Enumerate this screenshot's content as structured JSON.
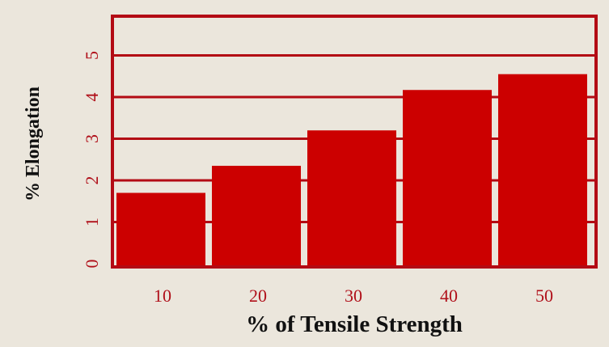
{
  "chart_data": {
    "type": "bar",
    "categories": [
      "10",
      "20",
      "30",
      "40",
      "50"
    ],
    "values": [
      1.7,
      2.35,
      3.2,
      4.17,
      4.55
    ],
    "xlabel": "% of Tensile Strength",
    "ylabel": "% Elongation",
    "ylim": [
      0,
      6
    ],
    "yticks": [
      "0",
      "1",
      "2",
      "3",
      "4",
      "5"
    ],
    "grid": true,
    "legend": "none",
    "colors": {
      "bar": "#cc0000",
      "grid": "#b30b14",
      "text": "#b0101a",
      "background": "#ebe6dc"
    }
  }
}
